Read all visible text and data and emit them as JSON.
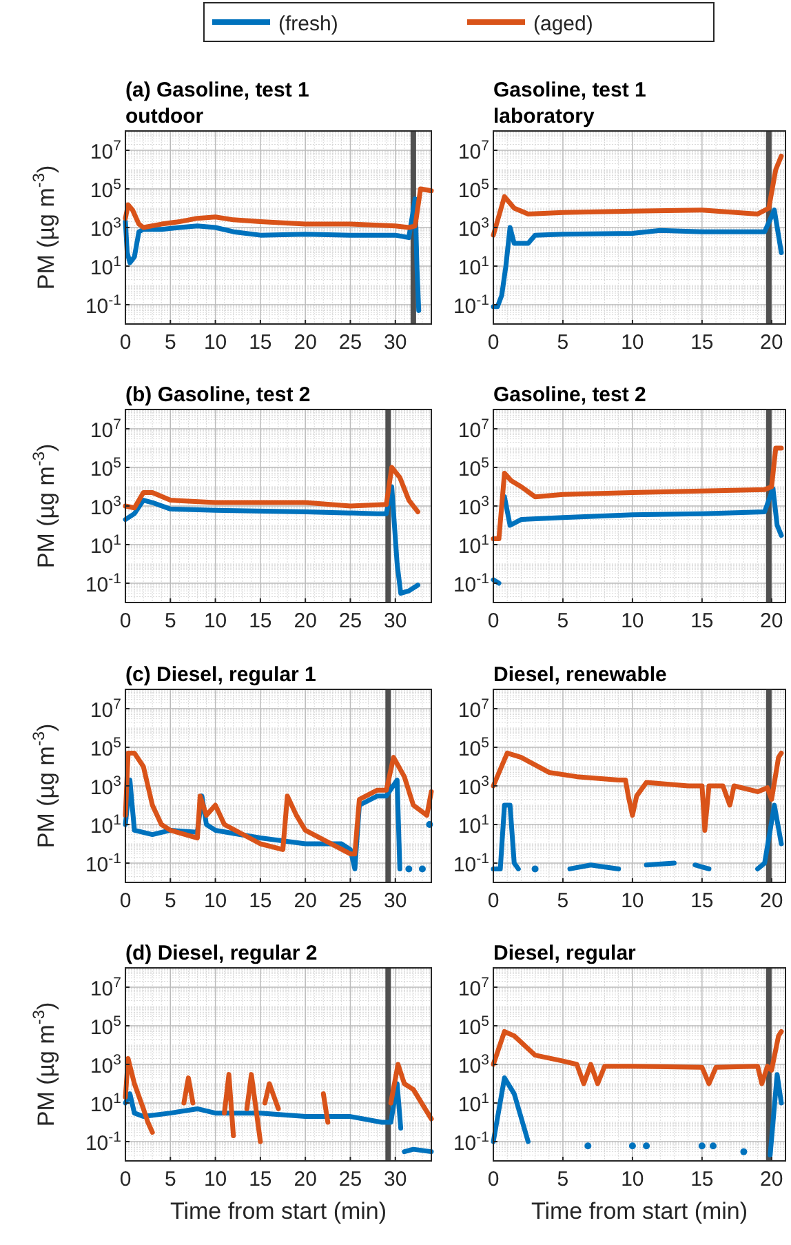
{
  "chart_data": [
    {
      "type": "line",
      "title": "(a) Gasoline, test 1\noutdoor",
      "ylabel": "PM (µg m$^{-3}$)",
      "legend": "top",
      "grid": true,
      "log": "y",
      "xlim": [
        0,
        34
      ],
      "xticks": [
        0,
        5,
        10,
        15,
        20,
        25,
        30
      ],
      "ylim": [
        0.01,
        100000000
      ],
      "yticks": [
        {
          "value": 0.1,
          "label": "10$^{-1}$"
        },
        {
          "value": 10,
          "label": "10$^{1}$"
        },
        {
          "value": 1000,
          "label": "10$^{3}$"
        },
        {
          "value": 100000,
          "label": "10$^{5}$"
        },
        {
          "value": 10000000,
          "label": "10$^{7}$"
        }
      ],
      "ref_lines": [
        {
          "axis": "x",
          "value": 32,
          "color": "#505050"
        }
      ],
      "series": [
        {
          "name": "(fresh)",
          "color": "#0072bd",
          "x": [
            0,
            0.2,
            0.5,
            1,
            1.5,
            2,
            4,
            6,
            8,
            10,
            12,
            15,
            20,
            25,
            30,
            31.5,
            32.2,
            32.4,
            32.6
          ],
          "values": [
            2000,
            50,
            15,
            30,
            600,
            800,
            800,
            1000,
            1200,
            1000,
            600,
            400,
            450,
            400,
            400,
            300,
            30000,
            10,
            0.05
          ]
        },
        {
          "name": "(aged)",
          "color": "#d95319",
          "x": [
            0,
            0.3,
            0.8,
            1.5,
            2,
            4,
            6,
            8,
            10,
            12,
            15,
            20,
            25,
            30,
            31.5,
            32.2,
            32.8,
            34
          ],
          "values": [
            3000,
            15000,
            8000,
            1500,
            1000,
            1500,
            2000,
            3000,
            3500,
            2500,
            2000,
            1500,
            1500,
            1200,
            1000,
            1200,
            100000,
            80000
          ]
        }
      ]
    },
    {
      "type": "line",
      "title": "Gasoline, test 1\nlaboratory",
      "grid": true,
      "log": "y",
      "xlim": [
        0,
        21
      ],
      "xticks": [
        0,
        5,
        10,
        15,
        20
      ],
      "ylim": [
        0.01,
        100000000
      ],
      "yticks": [
        {
          "value": 0.1,
          "label": "10$^{-1}$"
        },
        {
          "value": 10,
          "label": "10$^{1}$"
        },
        {
          "value": 1000,
          "label": "10$^{3}$"
        },
        {
          "value": 100000,
          "label": "10$^{5}$"
        },
        {
          "value": 10000000,
          "label": "10$^{7}$"
        }
      ],
      "ref_lines": [
        {
          "axis": "x",
          "value": 19.8,
          "color": "#505050"
        }
      ],
      "series": [
        {
          "color": "#0072bd",
          "x": [
            0,
            0.3,
            0.6,
            0.9,
            1.2,
            1.5,
            2.5,
            3,
            5,
            10,
            12,
            15,
            19.5,
            20.2,
            20.7
          ],
          "values": [
            0.08,
            0.08,
            0.3,
            10,
            1000,
            150,
            150,
            400,
            450,
            500,
            700,
            600,
            600,
            8000,
            50
          ]
        },
        {
          "color": "#d95319",
          "x": [
            0,
            0.8,
            1.5,
            2.5,
            5,
            10,
            15,
            19,
            19.8,
            20.3,
            20.7
          ],
          "values": [
            400,
            40000,
            10000,
            5000,
            6000,
            7000,
            8000,
            5000,
            10000,
            1000000,
            5000000
          ]
        }
      ]
    },
    {
      "type": "line",
      "title": "(b) Gasoline, test 2",
      "ylabel": "PM (µg m$^{-3}$)",
      "grid": true,
      "log": "y",
      "xlim": [
        0,
        34
      ],
      "xticks": [
        0,
        5,
        10,
        15,
        20,
        25,
        30
      ],
      "ylim": [
        0.01,
        100000000
      ],
      "yticks": [
        {
          "value": 0.1,
          "label": "10$^{-1}$"
        },
        {
          "value": 10,
          "label": "10$^{1}$"
        },
        {
          "value": 1000,
          "label": "10$^{3}$"
        },
        {
          "value": 100000,
          "label": "10$^{5}$"
        },
        {
          "value": 10000000,
          "label": "10$^{7}$"
        }
      ],
      "ref_lines": [
        {
          "axis": "x",
          "value": 29.2,
          "color": "#505050"
        }
      ],
      "series": [
        {
          "color": "#0072bd",
          "x": [
            0,
            1,
            2,
            3,
            5,
            10,
            20,
            28,
            29,
            29.6,
            30.2,
            30.6,
            31.5,
            32.5
          ],
          "values": [
            200,
            400,
            2000,
            1500,
            700,
            600,
            500,
            400,
            400,
            10000,
            1,
            0.03,
            0.04,
            0.08
          ]
        },
        {
          "color": "#d95319",
          "x": [
            0,
            1,
            2,
            3,
            5,
            10,
            20,
            25,
            29,
            29.6,
            30.5,
            31.5,
            32.5
          ],
          "values": [
            1000,
            800,
            5000,
            5000,
            2000,
            1500,
            1500,
            1000,
            1200,
            100000,
            30000,
            2000,
            500
          ]
        }
      ]
    },
    {
      "type": "line",
      "title": "Gasoline, test 2",
      "grid": true,
      "log": "y",
      "xlim": [
        0,
        21
      ],
      "xticks": [
        0,
        5,
        10,
        15,
        20
      ],
      "ylim": [
        0.01,
        100000000
      ],
      "yticks": [
        {
          "value": 0.1,
          "label": "10$^{-1}$"
        },
        {
          "value": 10,
          "label": "10$^{1}$"
        },
        {
          "value": 1000,
          "label": "10$^{3}$"
        },
        {
          "value": 100000,
          "label": "10$^{5}$"
        },
        {
          "value": 10000000,
          "label": "10$^{7}$"
        }
      ],
      "ref_lines": [
        {
          "axis": "x",
          "value": 19.8,
          "color": "#505050"
        }
      ],
      "series": [
        {
          "color": "#0072bd",
          "x": [
            0,
            0.4,
            0.6,
            0.8,
            1.2,
            2,
            5,
            10,
            15,
            19.5,
            20.1,
            20.4,
            20.7
          ],
          "values": [
            0.15,
            0.1,
            null,
            3000,
            100,
            200,
            250,
            350,
            400,
            500,
            8000,
            100,
            30
          ]
        },
        {
          "color": "#d95319",
          "x": [
            0,
            0.4,
            0.8,
            1.3,
            2,
            3,
            5,
            10,
            15,
            19.5,
            20,
            20.3,
            20.7
          ],
          "values": [
            20,
            20,
            50000,
            20000,
            10000,
            3000,
            4000,
            5000,
            6000,
            7000,
            10000,
            1000000,
            1000000
          ]
        }
      ]
    },
    {
      "type": "line",
      "title": "(c) Diesel, regular 1",
      "ylabel": "PM (µg m$^{-3}$)",
      "grid": true,
      "log": "y",
      "xlim": [
        0,
        34
      ],
      "xticks": [
        0,
        5,
        10,
        15,
        20,
        25,
        30
      ],
      "ylim": [
        0.01,
        100000000
      ],
      "yticks": [
        {
          "value": 0.1,
          "label": "10$^{-1}$"
        },
        {
          "value": 10,
          "label": "10$^{1}$"
        },
        {
          "value": 1000,
          "label": "10$^{3}$"
        },
        {
          "value": 100000,
          "label": "10$^{5}$"
        },
        {
          "value": 10000000,
          "label": "10$^{7}$"
        }
      ],
      "ref_lines": [
        {
          "axis": "x",
          "value": 29.2,
          "color": "#505050"
        }
      ],
      "series": [
        {
          "color": "#0072bd",
          "x": [
            0,
            0.5,
            1,
            3,
            5,
            8,
            8.5,
            9,
            10,
            15,
            20,
            24,
            25,
            25.5,
            26,
            28,
            29,
            30.2,
            30.5,
            31,
            31.5,
            32,
            33,
            33.3,
            33.8
          ],
          "values": [
            10,
            2000,
            5,
            3,
            5,
            4,
            300,
            10,
            5,
            2,
            1,
            1,
            0.5,
            0.05,
            100,
            300,
            300,
            2000,
            0.05,
            null,
            0.05,
            null,
            0.05,
            null,
            10
          ]
        },
        {
          "color": "#d95319",
          "x": [
            0,
            0.3,
            1,
            2,
            3,
            4,
            5,
            8,
            8.3,
            9,
            10,
            11,
            15,
            17.5,
            18,
            19,
            20,
            25,
            25.5,
            26,
            28,
            29,
            29.8,
            31,
            32,
            33.5,
            34
          ],
          "values": [
            30,
            50000,
            50000,
            10000,
            100,
            10,
            5,
            2,
            300,
            30,
            100,
            10,
            1,
            0.5,
            300,
            30,
            5,
            0.3,
            0.3,
            200,
            600,
            600,
            30000,
            3000,
            100,
            30,
            500
          ]
        }
      ]
    },
    {
      "type": "line",
      "title": "Diesel, renewable",
      "grid": true,
      "log": "y",
      "xlim": [
        0,
        21
      ],
      "xticks": [
        0,
        5,
        10,
        15,
        20
      ],
      "ylim": [
        0.01,
        100000000
      ],
      "yticks": [
        {
          "value": 0.1,
          "label": "10$^{-1}$"
        },
        {
          "value": 10,
          "label": "10$^{1}$"
        },
        {
          "value": 1000,
          "label": "10$^{3}$"
        },
        {
          "value": 100000,
          "label": "10$^{5}$"
        },
        {
          "value": 10000000,
          "label": "10$^{7}$"
        }
      ],
      "ref_lines": [
        {
          "axis": "x",
          "value": 19.8,
          "color": "#505050"
        }
      ],
      "series": [
        {
          "color": "#0072bd",
          "x": [
            0,
            0.5,
            0.8,
            1.2,
            1.5,
            1.8,
            2.3,
            3,
            3.3,
            5.5,
            7,
            9,
            9.5,
            11,
            13,
            13.5,
            14.5,
            15.5,
            16,
            19,
            19.5,
            20.2,
            20.7
          ],
          "values": [
            0.05,
            0.05,
            100,
            100,
            0.1,
            0.05,
            null,
            0.05,
            null,
            0.05,
            0.08,
            0.05,
            null,
            0.08,
            0.1,
            null,
            0.08,
            0.05,
            null,
            0.05,
            0.1,
            100,
            1
          ]
        },
        {
          "color": "#d95319",
          "x": [
            0,
            1,
            2,
            4,
            6,
            9,
            9.5,
            9.7,
            10,
            10.3,
            11,
            14,
            15,
            15.2,
            15.5,
            16.5,
            17,
            17.3,
            19,
            19.7,
            20,
            20.5,
            20.7
          ],
          "values": [
            1000,
            50000,
            30000,
            5000,
            3000,
            2000,
            2000,
            300,
            30,
            300,
            1500,
            1000,
            1000,
            5,
            1000,
            1000,
            100,
            1000,
            500,
            800,
            200,
            30000,
            50000
          ]
        }
      ]
    },
    {
      "type": "line",
      "title": "(d) Diesel, regular 2",
      "ylabel": "PM (µg m$^{-3}$)",
      "xlabel": "Time from start (min)",
      "grid": true,
      "log": "y",
      "xlim": [
        0,
        34
      ],
      "xticks": [
        0,
        5,
        10,
        15,
        20,
        25,
        30
      ],
      "ylim": [
        0.01,
        100000000
      ],
      "yticks": [
        {
          "value": 0.1,
          "label": "10$^{-1}$"
        },
        {
          "value": 10,
          "label": "10$^{1}$"
        },
        {
          "value": 1000,
          "label": "10$^{3}$"
        },
        {
          "value": 100000,
          "label": "10$^{5}$"
        },
        {
          "value": 10000000,
          "label": "10$^{7}$"
        }
      ],
      "ref_lines": [
        {
          "axis": "x",
          "value": 29.2,
          "color": "#505050"
        }
      ],
      "series": [
        {
          "color": "#0072bd",
          "x": [
            0,
            0.5,
            1,
            2,
            5,
            8,
            10,
            15,
            20,
            25,
            28.5,
            29.5,
            30.2,
            30.6,
            30.8,
            31,
            32,
            34
          ],
          "values": [
            10,
            30,
            3,
            2,
            3,
            5,
            3,
            3,
            2,
            2,
            1,
            1,
            100,
            0.5,
            null,
            0.03,
            0.04,
            0.03
          ]
        },
        {
          "color": "#d95319",
          "x": [
            0,
            0.3,
            1,
            2,
            2.5,
            3,
            4,
            6.5,
            7,
            7.5,
            9,
            11,
            11.5,
            12,
            13,
            13.5,
            14,
            15,
            15.2,
            15.5,
            16,
            17,
            19,
            22,
            22.5,
            25,
            29.5,
            30.3,
            31,
            32,
            34
          ],
          "values": [
            20,
            2000,
            100,
            5,
            1,
            0.3,
            null,
            10,
            200,
            10,
            null,
            3,
            300,
            0.2,
            null,
            5,
            300,
            0.1,
            null,
            10,
            100,
            5,
            null,
            30,
            1,
            null,
            10,
            1000,
            100,
            50,
            1.5
          ]
        }
      ]
    },
    {
      "type": "line",
      "title": "Diesel, regular",
      "xlabel": "Time from start (min)",
      "grid": true,
      "log": "y",
      "xlim": [
        0,
        21
      ],
      "xticks": [
        0,
        5,
        10,
        15,
        20
      ],
      "ylim": [
        0.01,
        100000000
      ],
      "yticks": [
        {
          "value": 0.1,
          "label": "10$^{-1}$"
        },
        {
          "value": 10,
          "label": "10$^{1}$"
        },
        {
          "value": 1000,
          "label": "10$^{3}$"
        },
        {
          "value": 100000,
          "label": "10$^{5}$"
        },
        {
          "value": 10000000,
          "label": "10$^{7}$"
        }
      ],
      "ref_lines": [
        {
          "axis": "x",
          "value": 19.8,
          "color": "#505050"
        }
      ],
      "series": [
        {
          "color": "#0072bd",
          "x": [
            0,
            0.8,
            1.5,
            2.5,
            2.9,
            3.2,
            6.5,
            6.8,
            7.1,
            9.7,
            10,
            10.3,
            11,
            11.3,
            14.7,
            15,
            15.3,
            15.8,
            16.1,
            17.8,
            18,
            18.2,
            19.9,
            20.4,
            20.7
          ],
          "values": [
            0.1,
            200,
            30,
            0.1,
            null,
            null,
            null,
            0.06,
            null,
            null,
            0.06,
            null,
            0.06,
            null,
            null,
            0.06,
            null,
            0.06,
            null,
            null,
            0.03,
            null,
            0.02,
            300,
            10
          ]
        },
        {
          "color": "#d95319",
          "x": [
            0,
            0.8,
            1.5,
            3,
            5,
            6,
            6.5,
            7,
            7.5,
            8,
            10,
            15,
            15.5,
            16,
            19,
            19.3,
            19.7,
            20,
            20.5,
            20.7
          ],
          "values": [
            1000,
            50000,
            30000,
            3000,
            1500,
            1000,
            100,
            1000,
            100,
            800,
            800,
            700,
            100,
            700,
            800,
            100,
            800,
            500,
            30000,
            50000
          ]
        }
      ]
    }
  ]
}
